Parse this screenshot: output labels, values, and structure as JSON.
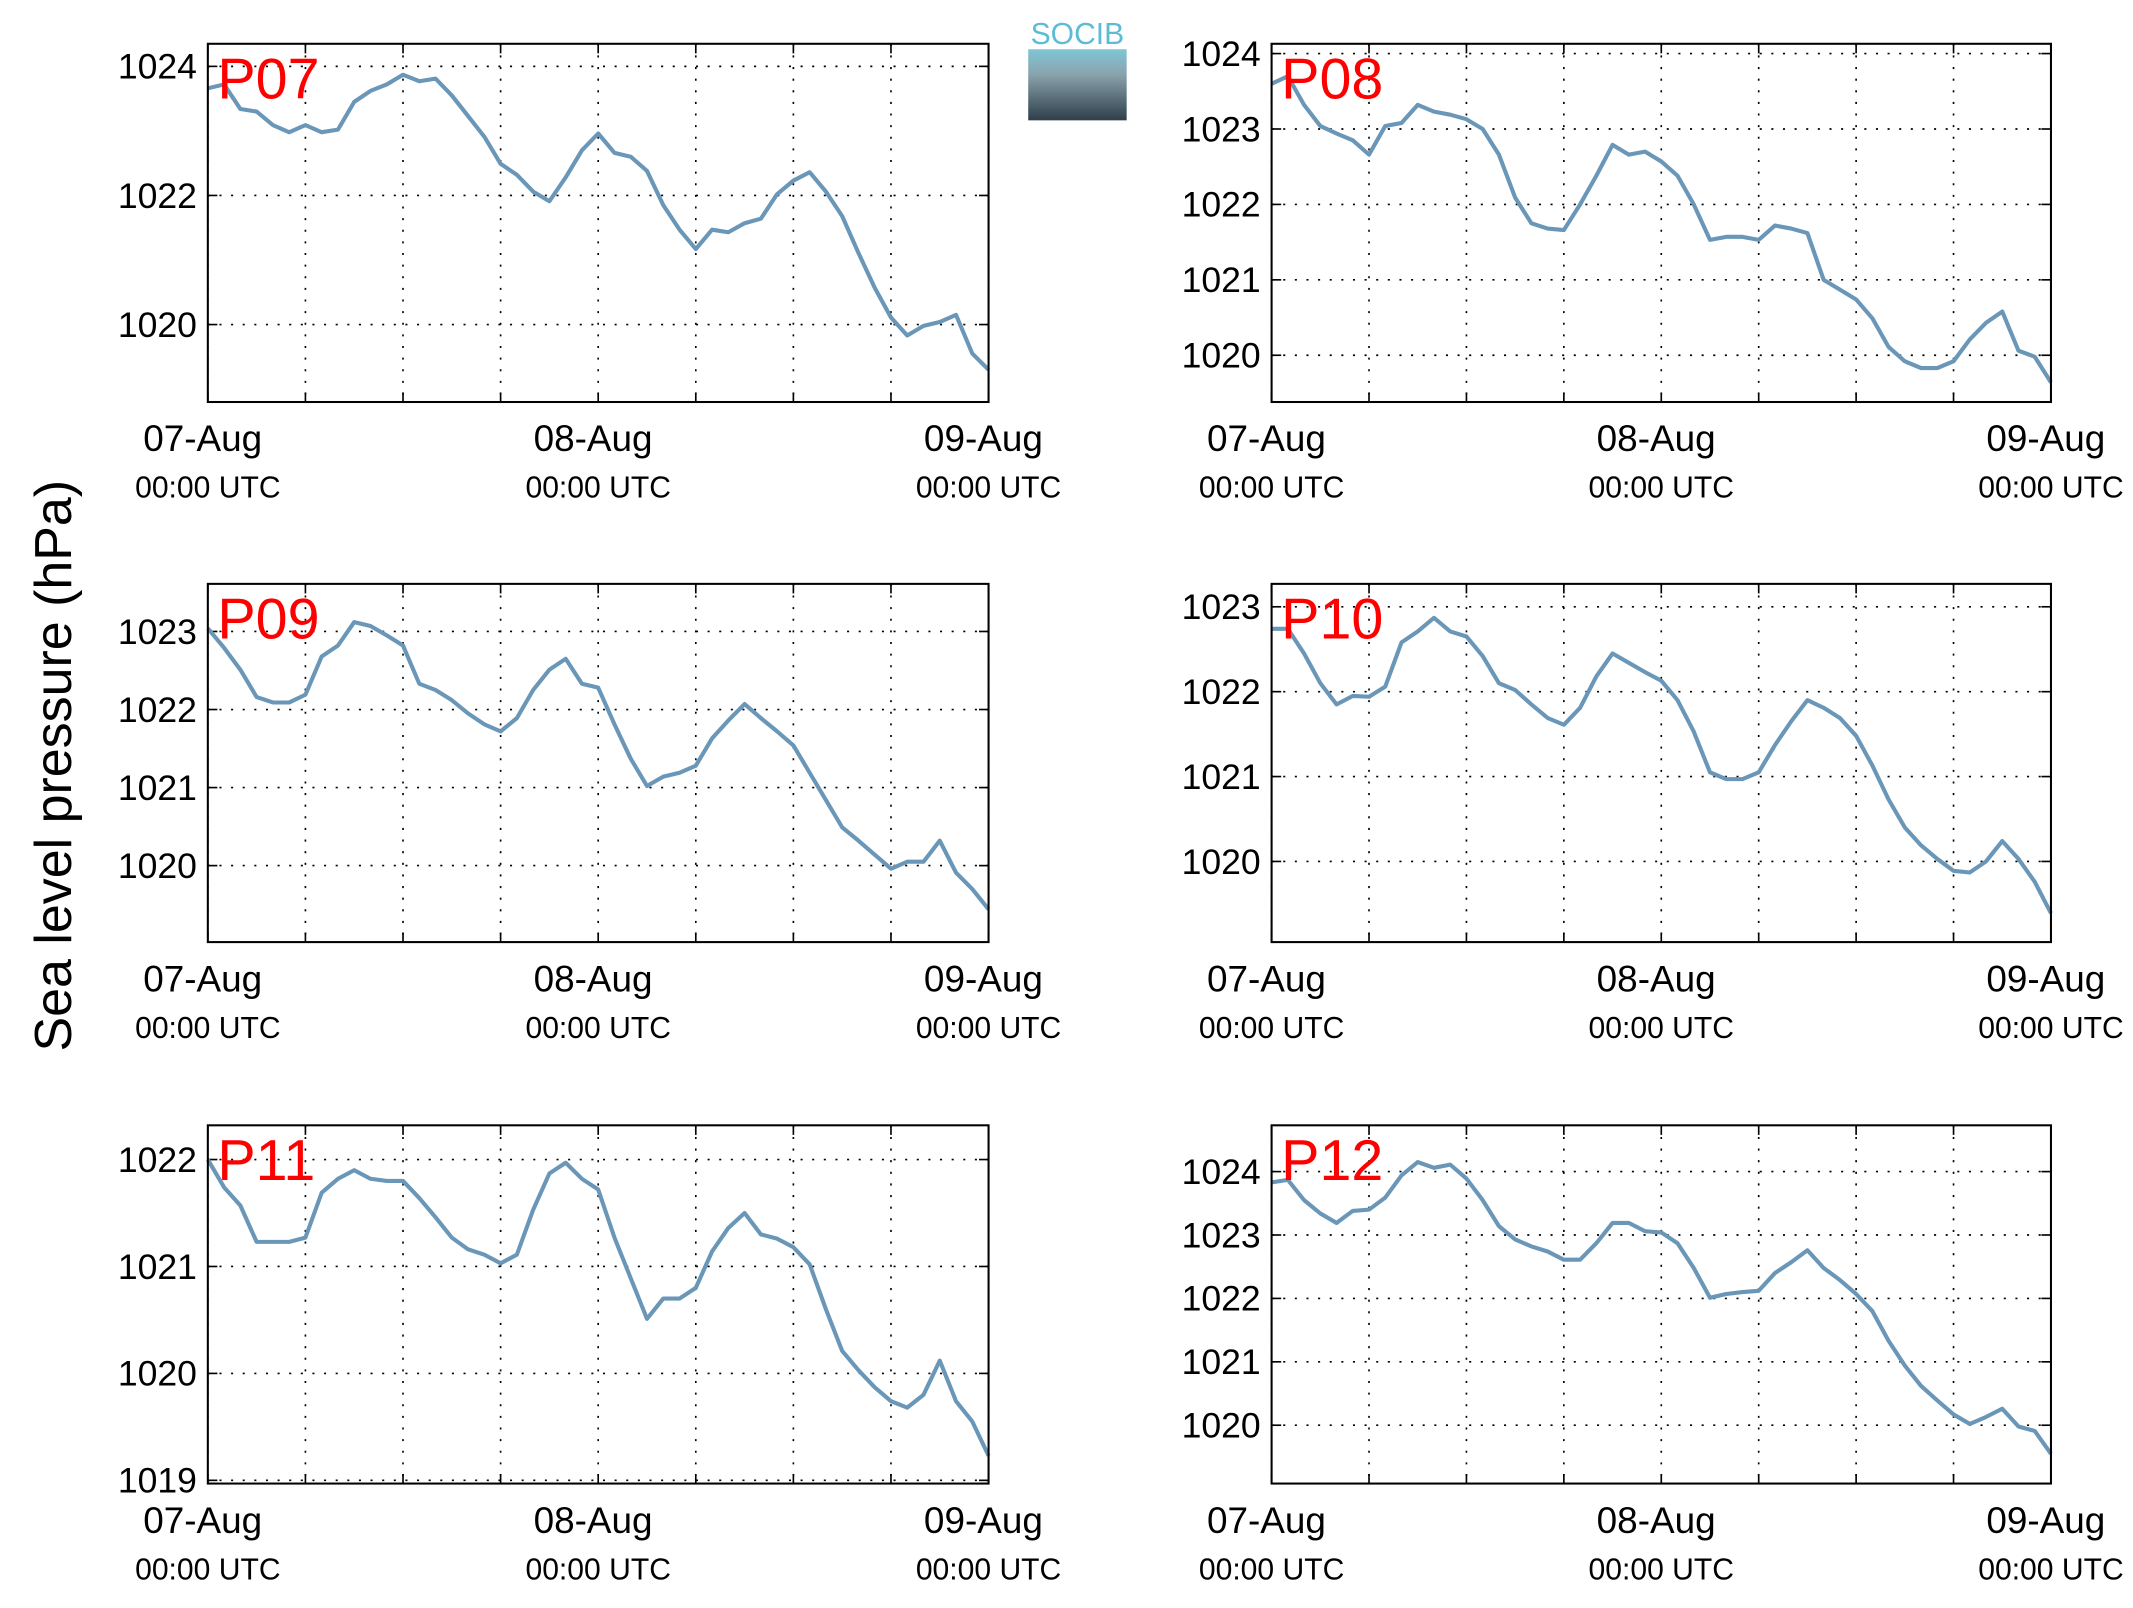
{
  "ylabel": "Sea level pressure (hPa)",
  "logo": "SOCIB",
  "chart_data": [
    {
      "type": "line",
      "title": "P07",
      "xlim": [
        0,
        48
      ],
      "ylim": [
        1018.8,
        1024.35
      ],
      "xticks": [
        {
          "value": 0,
          "label": "07-Aug 00:00 UTC"
        },
        {
          "value": 24,
          "label": "08-Aug 00:00 UTC"
        },
        {
          "value": 48,
          "label": "09-Aug 00:00 UTC"
        }
      ],
      "xminorticks": [
        6,
        12,
        18,
        30,
        36,
        42
      ],
      "yticks": [
        1020,
        1022,
        1024
      ],
      "grid": true,
      "x": [
        0,
        1,
        2,
        3,
        4,
        5,
        6,
        7,
        8,
        9,
        10,
        11,
        12,
        13,
        14,
        15,
        16,
        17,
        18,
        19,
        20,
        21,
        22,
        23,
        24,
        25,
        26,
        27,
        28,
        29,
        30,
        31,
        32,
        33,
        34,
        35,
        36,
        37,
        38,
        39,
        40,
        41,
        42,
        43,
        44,
        45,
        46,
        47,
        48
      ],
      "series": [
        {
          "name": "P07",
          "color": "#6a96b8",
          "values": [
            1023.66,
            1023.72,
            1023.34,
            1023.3,
            1023.09,
            1022.98,
            1023.09,
            1022.98,
            1023.02,
            1023.45,
            1023.62,
            1023.72,
            1023.87,
            1023.77,
            1023.81,
            1023.55,
            1023.23,
            1022.91,
            1022.49,
            1022.32,
            1022.06,
            1021.91,
            1022.28,
            1022.7,
            1022.96,
            1022.66,
            1022.6,
            1022.38,
            1021.85,
            1021.47,
            1021.17,
            1021.47,
            1021.43,
            1021.57,
            1021.64,
            1022.02,
            1022.23,
            1022.36,
            1022.06,
            1021.68,
            1021.11,
            1020.57,
            1020.11,
            1019.83,
            1019.98,
            1020.04,
            1020.15,
            1019.55,
            1019.3
          ]
        }
      ]
    },
    {
      "type": "line",
      "title": "P08",
      "xlim": [
        0,
        48
      ],
      "ylim": [
        1019.38,
        1024.13
      ],
      "xticks": [
        {
          "value": 0,
          "label": "07-Aug 00:00 UTC"
        },
        {
          "value": 24,
          "label": "08-Aug 00:00 UTC"
        },
        {
          "value": 48,
          "label": "09-Aug 00:00 UTC"
        }
      ],
      "xminorticks": [
        6,
        12,
        18,
        30,
        36,
        42
      ],
      "yticks": [
        1020,
        1021,
        1022,
        1023,
        1024
      ],
      "grid": true,
      "x": [
        0,
        1,
        2,
        3,
        4,
        5,
        6,
        7,
        8,
        9,
        10,
        11,
        12,
        13,
        14,
        15,
        16,
        17,
        18,
        19,
        20,
        21,
        22,
        23,
        24,
        25,
        26,
        27,
        28,
        29,
        30,
        31,
        32,
        33,
        34,
        35,
        36,
        37,
        38,
        39,
        40,
        41,
        42,
        43,
        44,
        45,
        46,
        47,
        48
      ],
      "series": [
        {
          "name": "P08",
          "color": "#6a96b8",
          "values": [
            1023.6,
            1023.7,
            1023.32,
            1023.04,
            1022.94,
            1022.85,
            1022.66,
            1023.04,
            1023.08,
            1023.32,
            1023.23,
            1023.19,
            1023.13,
            1023.0,
            1022.66,
            1022.09,
            1021.75,
            1021.68,
            1021.66,
            1022.0,
            1022.38,
            1022.79,
            1022.66,
            1022.7,
            1022.57,
            1022.38,
            1022.0,
            1021.53,
            1021.57,
            1021.57,
            1021.53,
            1021.72,
            1021.68,
            1021.62,
            1021.0,
            1020.87,
            1020.74,
            1020.49,
            1020.11,
            1019.92,
            1019.83,
            1019.83,
            1019.92,
            1020.21,
            1020.43,
            1020.58,
            1020.06,
            1019.98,
            1019.64
          ]
        }
      ]
    },
    {
      "type": "line",
      "title": "P09",
      "xlim": [
        0,
        48
      ],
      "ylim": [
        1019.02,
        1023.61
      ],
      "xticks": [
        {
          "value": 0,
          "label": "07-Aug 00:00 UTC"
        },
        {
          "value": 24,
          "label": "08-Aug 00:00 UTC"
        },
        {
          "value": 48,
          "label": "09-Aug 00:00 UTC"
        }
      ],
      "xminorticks": [
        6,
        12,
        18,
        30,
        36,
        42
      ],
      "yticks": [
        1020,
        1021,
        1022,
        1023
      ],
      "grid": true,
      "x": [
        0,
        1,
        2,
        3,
        4,
        5,
        6,
        7,
        8,
        9,
        10,
        11,
        12,
        13,
        14,
        15,
        16,
        17,
        18,
        19,
        20,
        21,
        22,
        23,
        24,
        25,
        26,
        27,
        28,
        29,
        30,
        31,
        32,
        33,
        34,
        35,
        36,
        37,
        38,
        39,
        40,
        41,
        42,
        43,
        44,
        45,
        46,
        47,
        48
      ],
      "series": [
        {
          "name": "P09",
          "color": "#6a96b8",
          "values": [
            1023.04,
            1022.79,
            1022.51,
            1022.16,
            1022.09,
            1022.09,
            1022.19,
            1022.68,
            1022.82,
            1023.12,
            1023.07,
            1022.95,
            1022.82,
            1022.33,
            1022.25,
            1022.12,
            1021.95,
            1021.81,
            1021.72,
            1021.89,
            1022.25,
            1022.51,
            1022.65,
            1022.33,
            1022.28,
            1021.81,
            1021.37,
            1021.02,
            1021.14,
            1021.19,
            1021.28,
            1021.63,
            1021.86,
            1022.07,
            1021.89,
            1021.72,
            1021.54,
            1021.19,
            1020.84,
            1020.49,
            1020.32,
            1020.14,
            1019.96,
            1020.05,
            1020.05,
            1020.32,
            1019.91,
            1019.7,
            1019.44
          ]
        }
      ]
    },
    {
      "type": "line",
      "title": "P10",
      "xlim": [
        0,
        48
      ],
      "ylim": [
        1019.05,
        1023.27
      ],
      "xticks": [
        {
          "value": 0,
          "label": "07-Aug 00:00 UTC"
        },
        {
          "value": 24,
          "label": "08-Aug 00:00 UTC"
        },
        {
          "value": 48,
          "label": "09-Aug 00:00 UTC"
        }
      ],
      "xminorticks": [
        6,
        12,
        18,
        30,
        36,
        42
      ],
      "yticks": [
        1020,
        1021,
        1022,
        1023
      ],
      "grid": true,
      "x": [
        0,
        1,
        2,
        3,
        4,
        5,
        6,
        7,
        8,
        9,
        10,
        11,
        12,
        13,
        14,
        15,
        16,
        17,
        18,
        19,
        20,
        21,
        22,
        23,
        24,
        25,
        26,
        27,
        28,
        29,
        30,
        31,
        32,
        33,
        34,
        35,
        36,
        37,
        38,
        39,
        40,
        41,
        42,
        43,
        44,
        45,
        46,
        47,
        48
      ],
      "series": [
        {
          "name": "P10",
          "color": "#6a96b8",
          "values": [
            1022.74,
            1022.74,
            1022.45,
            1022.1,
            1021.85,
            1021.95,
            1021.94,
            1022.06,
            1022.58,
            1022.71,
            1022.87,
            1022.71,
            1022.65,
            1022.42,
            1022.1,
            1022.02,
            1021.85,
            1021.69,
            1021.61,
            1021.81,
            1022.18,
            1022.45,
            1022.34,
            1022.23,
            1022.13,
            1021.9,
            1021.53,
            1021.05,
            1020.97,
            1020.97,
            1021.05,
            1021.37,
            1021.65,
            1021.9,
            1021.81,
            1021.69,
            1021.48,
            1021.13,
            1020.73,
            1020.4,
            1020.19,
            1020.03,
            1019.89,
            1019.87,
            1020.0,
            1020.24,
            1020.03,
            1019.76,
            1019.39
          ]
        }
      ]
    },
    {
      "type": "line",
      "title": "P11",
      "xlim": [
        0,
        48
      ],
      "ylim": [
        1018.97,
        1022.32
      ],
      "xticks": [
        {
          "value": 0,
          "label": "07-Aug 00:00 UTC"
        },
        {
          "value": 24,
          "label": "08-Aug 00:00 UTC"
        },
        {
          "value": 48,
          "label": "09-Aug 00:00 UTC"
        }
      ],
      "xminorticks": [
        6,
        12,
        18,
        30,
        36,
        42
      ],
      "yticks": [
        1019,
        1020,
        1021,
        1022
      ],
      "grid": true,
      "x": [
        0,
        1,
        2,
        3,
        4,
        5,
        6,
        7,
        8,
        9,
        10,
        11,
        12,
        13,
        14,
        15,
        16,
        17,
        18,
        19,
        20,
        21,
        22,
        23,
        24,
        25,
        26,
        27,
        28,
        29,
        30,
        31,
        32,
        33,
        34,
        35,
        36,
        37,
        38,
        39,
        40,
        41,
        42,
        43,
        44,
        45,
        46,
        47,
        48
      ],
      "series": [
        {
          "name": "P11",
          "color": "#6a96b8",
          "values": [
            1022.0,
            1021.74,
            1021.57,
            1021.23,
            1021.23,
            1021.23,
            1021.27,
            1021.69,
            1021.82,
            1021.9,
            1021.82,
            1021.8,
            1021.8,
            1021.64,
            1021.46,
            1021.27,
            1021.16,
            1021.11,
            1021.03,
            1021.11,
            1021.53,
            1021.87,
            1021.97,
            1021.82,
            1021.72,
            1021.27,
            1020.89,
            1020.51,
            1020.7,
            1020.7,
            1020.8,
            1021.14,
            1021.36,
            1021.5,
            1021.3,
            1021.26,
            1021.18,
            1021.02,
            1020.6,
            1020.21,
            1020.03,
            1019.87,
            1019.74,
            1019.68,
            1019.8,
            1020.12,
            1019.74,
            1019.55,
            1019.23
          ]
        }
      ]
    },
    {
      "type": "line",
      "title": "P12",
      "xlim": [
        0,
        48
      ],
      "ylim": [
        1019.08,
        1024.73
      ],
      "xticks": [
        {
          "value": 0,
          "label": "07-Aug 00:00 UTC"
        },
        {
          "value": 24,
          "label": "08-Aug 00:00 UTC"
        },
        {
          "value": 48,
          "label": "09-Aug 00:00 UTC"
        }
      ],
      "xminorticks": [
        6,
        12,
        18,
        30,
        36,
        42
      ],
      "yticks": [
        1020,
        1021,
        1022,
        1023,
        1024
      ],
      "grid": true,
      "x": [
        0,
        1,
        2,
        3,
        4,
        5,
        6,
        7,
        8,
        9,
        10,
        11,
        12,
        13,
        14,
        15,
        16,
        17,
        18,
        19,
        20,
        21,
        22,
        23,
        24,
        25,
        26,
        27,
        28,
        29,
        30,
        31,
        32,
        33,
        34,
        35,
        36,
        37,
        38,
        39,
        40,
        41,
        42,
        43,
        44,
        45,
        46,
        47,
        48
      ],
      "series": [
        {
          "name": "P12",
          "color": "#6a96b8",
          "values": [
            1023.83,
            1023.87,
            1023.55,
            1023.34,
            1023.19,
            1023.38,
            1023.4,
            1023.59,
            1023.94,
            1024.15,
            1024.06,
            1024.11,
            1023.89,
            1023.55,
            1023.14,
            1022.93,
            1022.82,
            1022.74,
            1022.61,
            1022.61,
            1022.87,
            1023.19,
            1023.19,
            1023.06,
            1023.04,
            1022.87,
            1022.48,
            1022.01,
            1022.07,
            1022.1,
            1022.12,
            1022.4,
            1022.57,
            1022.76,
            1022.48,
            1022.29,
            1022.07,
            1021.8,
            1021.33,
            1020.94,
            1020.62,
            1020.39,
            1020.17,
            1020.02,
            1020.13,
            1020.26,
            1019.98,
            1019.91,
            1019.55
          ]
        }
      ]
    }
  ]
}
